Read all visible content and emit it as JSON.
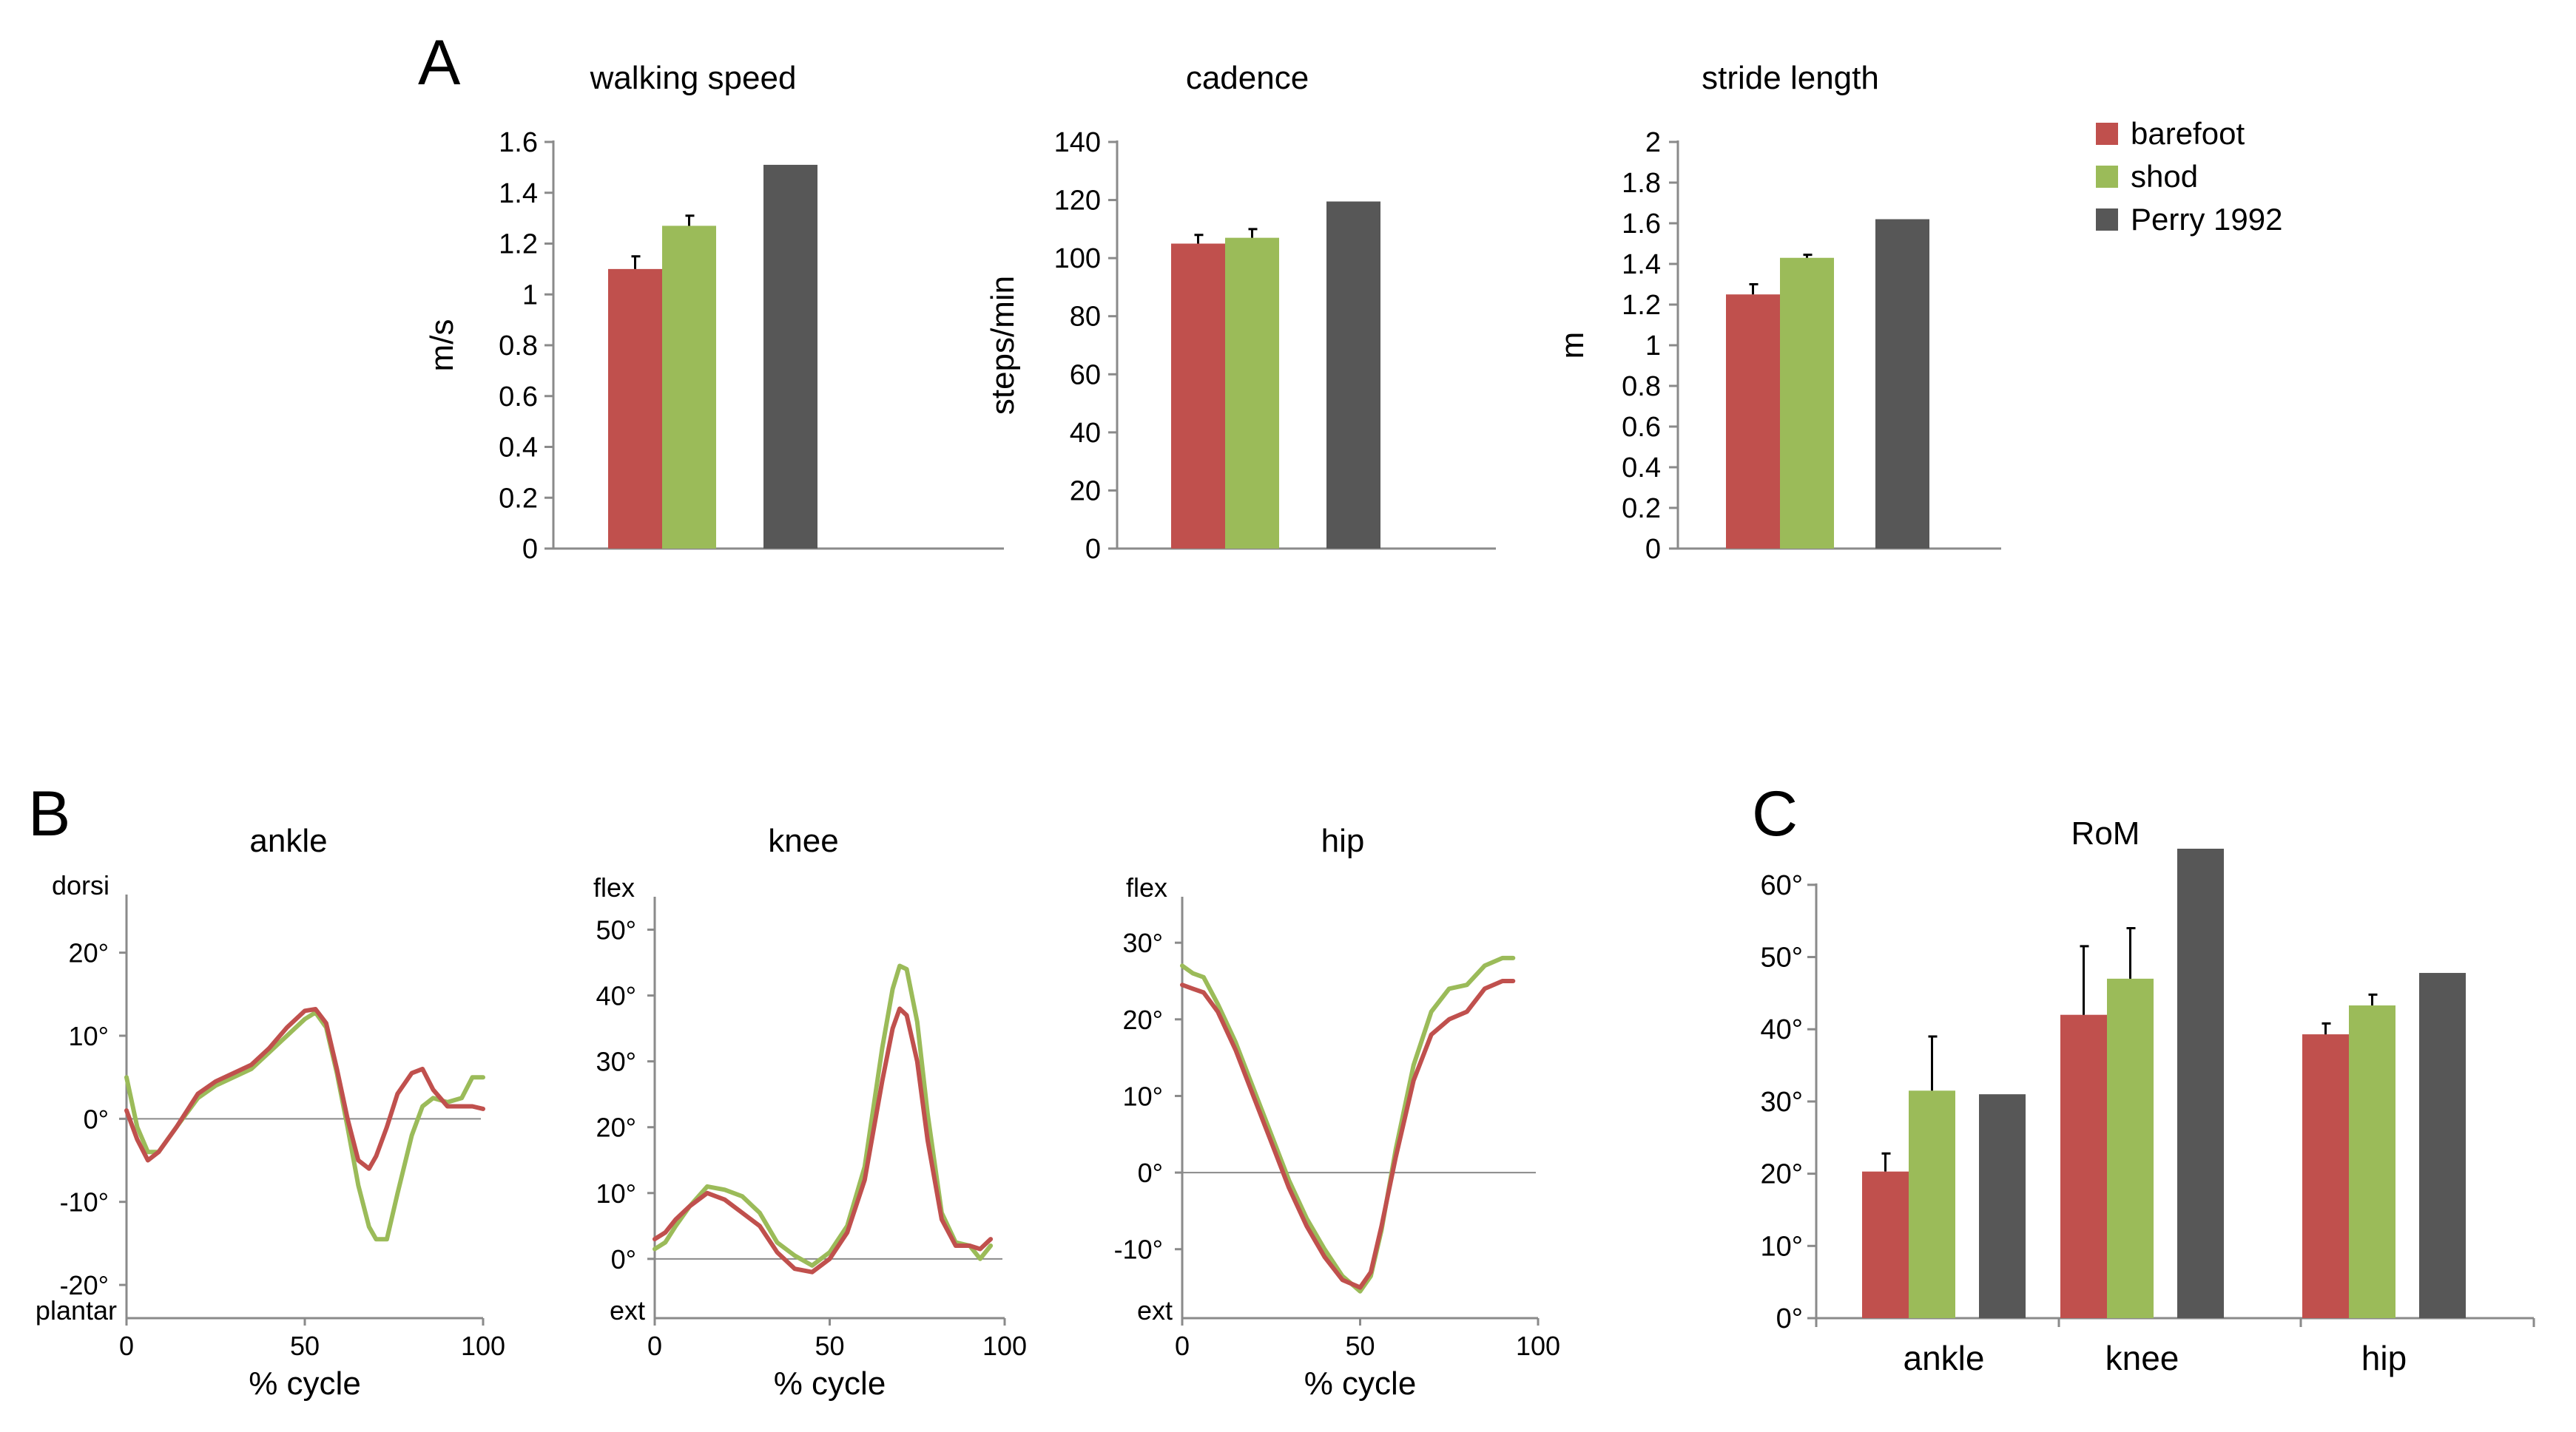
{
  "colors": {
    "barefoot": "#c0504d",
    "shod": "#9bbb59",
    "perry": "#575757"
  },
  "legend": [
    {
      "key": "barefoot",
      "label": "barefoot"
    },
    {
      "key": "shod",
      "label": "shod"
    },
    {
      "key": "perry",
      "label": "Perry 1992"
    }
  ],
  "panels": {
    "a": "A",
    "b": "B",
    "c": "C"
  },
  "chart_data": [
    {
      "id": "speed",
      "type": "bar",
      "title": "walking speed",
      "ylabel": "m/s",
      "ylim": [
        0,
        1.6
      ],
      "ticks": [
        "0",
        "0.2",
        "0.4",
        "0.6",
        "0.8",
        "1",
        "1.2",
        "1.4",
        "1.6"
      ],
      "categories": [
        ""
      ],
      "series": [
        {
          "name": "barefoot",
          "values": [
            1.1
          ],
          "err": [
            0.05
          ]
        },
        {
          "name": "shod",
          "values": [
            1.27
          ],
          "err": [
            0.04
          ]
        },
        {
          "name": "Perry 1992",
          "values": [
            1.51
          ]
        }
      ]
    },
    {
      "id": "cadence",
      "type": "bar",
      "title": "cadence",
      "ylabel": "steps/min",
      "ylim": [
        0,
        140
      ],
      "ticks": [
        "0",
        "20",
        "40",
        "60",
        "80",
        "100",
        "120",
        "140"
      ],
      "categories": [
        ""
      ],
      "series": [
        {
          "name": "barefoot",
          "values": [
            105
          ],
          "err": [
            3
          ]
        },
        {
          "name": "shod",
          "values": [
            107
          ],
          "err": [
            3
          ]
        },
        {
          "name": "Perry 1992",
          "values": [
            119.5
          ]
        }
      ]
    },
    {
      "id": "stride",
      "type": "bar",
      "title": "stride length",
      "ylabel": "m",
      "ylim": [
        0,
        2
      ],
      "ticks": [
        "0",
        "0.2",
        "0.4",
        "0.6",
        "0.8",
        "1",
        "1.2",
        "1.4",
        "1.6",
        "1.8",
        "2"
      ],
      "categories": [
        ""
      ],
      "series": [
        {
          "name": "barefoot",
          "values": [
            1.25
          ],
          "err": [
            0.05
          ]
        },
        {
          "name": "shod",
          "values": [
            1.43
          ],
          "err": [
            0.015
          ]
        },
        {
          "name": "Perry 1992",
          "values": [
            1.62
          ]
        }
      ]
    },
    {
      "id": "ankle",
      "type": "line",
      "title": "ankle",
      "xlabel": "% cycle",
      "xlim": [
        0,
        100
      ],
      "ylim": [
        -24,
        27
      ],
      "xticks": [
        "0",
        "50",
        "100"
      ],
      "yticks": [
        {
          "v": -20,
          "label": "-20°"
        },
        {
          "v": -10,
          "label": "-10°"
        },
        {
          "v": 0,
          "label": "0°"
        },
        {
          "v": 10,
          "label": "10°"
        },
        {
          "v": 20,
          "label": "20°"
        }
      ],
      "top_label": "dorsi",
      "bottom_label": "plantar",
      "series": [
        {
          "name": "barefoot",
          "x": [
            0,
            3,
            6,
            9,
            14,
            20,
            25,
            30,
            35,
            40,
            45,
            50,
            53,
            56,
            59,
            62,
            65,
            68,
            70,
            73,
            76,
            80,
            83,
            86,
            90,
            94,
            97,
            100
          ],
          "y": [
            1,
            -2.5,
            -5,
            -4,
            -1,
            3,
            4.5,
            5.5,
            6.5,
            8.5,
            11,
            13,
            13.2,
            11.5,
            6,
            0,
            -5,
            -6,
            -4.5,
            -1,
            3,
            5.5,
            6,
            3.5,
            1.5,
            1.5,
            1.5,
            1.2
          ]
        },
        {
          "name": "shod",
          "x": [
            0,
            3,
            6,
            9,
            14,
            20,
            25,
            30,
            35,
            40,
            45,
            50,
            53,
            56,
            59,
            62,
            65,
            68,
            70,
            73,
            76,
            80,
            83,
            86,
            90,
            94,
            97,
            100
          ],
          "y": [
            5,
            -1,
            -4,
            -4,
            -1,
            2.5,
            4,
            5,
            6,
            8,
            10,
            12,
            12.8,
            11,
            5.5,
            -1,
            -8,
            -13,
            -14.5,
            -14.5,
            -9,
            -2,
            1.5,
            2.5,
            2,
            2.5,
            5,
            5
          ]
        }
      ]
    },
    {
      "id": "knee",
      "type": "line",
      "title": "knee",
      "xlabel": "% cycle",
      "xlim": [
        0,
        100
      ],
      "ylim": [
        -9,
        55
      ],
      "xticks": [
        "0",
        "50",
        "100"
      ],
      "yticks": [
        {
          "v": 0,
          "label": "0°"
        },
        {
          "v": 10,
          "label": "10°"
        },
        {
          "v": 20,
          "label": "20°"
        },
        {
          "v": 30,
          "label": "30°"
        },
        {
          "v": 40,
          "label": "40°"
        },
        {
          "v": 50,
          "label": "50°"
        }
      ],
      "top_label": "flex",
      "bottom_label": "ext",
      "series": [
        {
          "name": "barefoot",
          "x": [
            0,
            3,
            6,
            10,
            15,
            20,
            25,
            30,
            35,
            40,
            45,
            50,
            55,
            60,
            65,
            68,
            70,
            72,
            75,
            78,
            82,
            86,
            90,
            93,
            96
          ],
          "y": [
            3,
            4,
            6,
            8,
            10,
            9,
            7,
            5,
            1,
            -1.5,
            -2,
            0,
            4,
            12,
            27,
            35,
            38,
            37,
            30,
            18,
            6,
            2,
            2,
            1.5,
            3
          ]
        },
        {
          "name": "shod",
          "x": [
            0,
            3,
            6,
            10,
            15,
            20,
            25,
            30,
            35,
            40,
            45,
            50,
            55,
            60,
            65,
            68,
            70,
            72,
            75,
            78,
            82,
            86,
            90,
            93,
            96
          ],
          "y": [
            1.5,
            2.5,
            5,
            8,
            11,
            10.5,
            9.5,
            7,
            2.5,
            0.5,
            -1,
            1,
            5,
            14,
            32,
            41,
            44.5,
            44,
            36,
            22,
            7,
            2.5,
            2,
            0,
            2
          ]
        }
      ]
    },
    {
      "id": "hip",
      "type": "line",
      "title": "hip",
      "xlabel": "% cycle",
      "xlim": [
        0,
        100
      ],
      "ylim": [
        -19,
        36
      ],
      "xticks": [
        "0",
        "50",
        "100"
      ],
      "yticks": [
        {
          "v": -10,
          "label": "-10°"
        },
        {
          "v": 0,
          "label": "0°"
        },
        {
          "v": 10,
          "label": "10°"
        },
        {
          "v": 20,
          "label": "20°"
        },
        {
          "v": 30,
          "label": "30°"
        }
      ],
      "top_label": "flex",
      "bottom_label": "ext",
      "series": [
        {
          "name": "barefoot",
          "x": [
            0,
            3,
            6,
            10,
            15,
            20,
            25,
            30,
            35,
            40,
            45,
            50,
            53,
            56,
            60,
            65,
            70,
            75,
            80,
            85,
            90,
            93
          ],
          "y": [
            24.5,
            24,
            23.5,
            21,
            16,
            10,
            4,
            -2,
            -7,
            -11,
            -14,
            -15,
            -13,
            -7,
            2,
            12,
            18,
            20,
            21,
            24,
            25,
            25
          ]
        },
        {
          "name": "shod",
          "x": [
            0,
            3,
            6,
            10,
            15,
            20,
            25,
            30,
            35,
            40,
            45,
            50,
            53,
            56,
            60,
            65,
            70,
            75,
            80,
            85,
            90,
            93
          ],
          "y": [
            27,
            26,
            25.5,
            22,
            17,
            11,
            5,
            -1,
            -6,
            -10,
            -13.5,
            -15.5,
            -13.5,
            -7.5,
            3,
            14,
            21,
            24,
            24.5,
            27,
            28,
            28
          ]
        }
      ]
    },
    {
      "id": "rom",
      "type": "bar",
      "title": "RoM",
      "ylim": [
        0,
        65
      ],
      "yticks": [
        {
          "v": 0,
          "label": "0°"
        },
        {
          "v": 10,
          "label": "10°"
        },
        {
          "v": 20,
          "label": "20°"
        },
        {
          "v": 30,
          "label": "30°"
        },
        {
          "v": 40,
          "label": "40°"
        },
        {
          "v": 50,
          "label": "50°"
        },
        {
          "v": 60,
          "label": "60°"
        }
      ],
      "categories": [
        "ankle",
        "knee",
        "hip"
      ],
      "series": [
        {
          "name": "barefoot",
          "values": [
            20.3,
            42,
            39.3
          ],
          "err": [
            2.5,
            9.5,
            1.5
          ]
        },
        {
          "name": "shod",
          "values": [
            31.5,
            47,
            43.3
          ],
          "err": [
            7.5,
            7,
            1.5
          ]
        },
        {
          "name": "Perry 1992",
          "values": [
            31,
            65,
            47.8
          ]
        }
      ]
    }
  ]
}
